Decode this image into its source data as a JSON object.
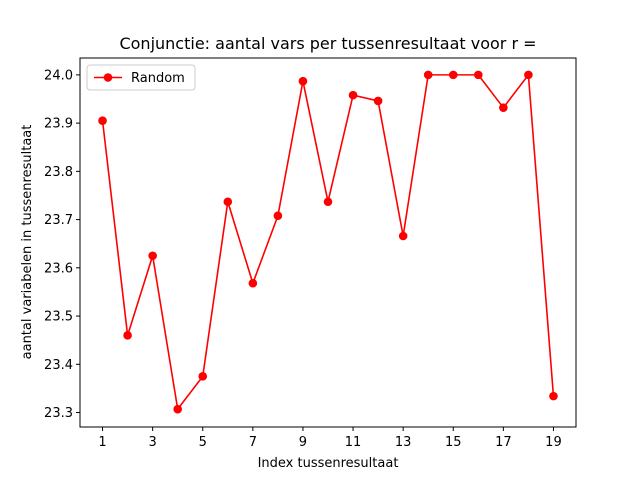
{
  "chart_data": {
    "type": "line",
    "title": "Conjunctie: aantal vars per tussenresultaat voor r =",
    "xlabel": "Index tussenresultaat",
    "ylabel": "aantal variabelen in tussenresultaat",
    "xlim": [
      0.1,
      19.9
    ],
    "ylim": [
      23.27,
      24.035
    ],
    "xticks": [
      1,
      3,
      5,
      7,
      9,
      11,
      13,
      15,
      17,
      19
    ],
    "xtick_labels": [
      "1",
      "3",
      "5",
      "7",
      "9",
      "11",
      "13",
      "15",
      "17",
      "19"
    ],
    "yticks": [
      23.3,
      23.4,
      23.5,
      23.6,
      23.7,
      23.8,
      23.9,
      24.0
    ],
    "ytick_labels": [
      "23.3",
      "23.4",
      "23.5",
      "23.6",
      "23.7",
      "23.8",
      "23.9",
      "24.0"
    ],
    "grid": false,
    "legend_position": "top-left",
    "series": [
      {
        "name": "Random",
        "color": "#ff0000",
        "marker": "circle",
        "x": [
          1,
          2,
          3,
          4,
          5,
          6,
          7,
          8,
          9,
          10,
          11,
          12,
          13,
          14,
          15,
          16,
          17,
          18,
          19
        ],
        "values": [
          23.905,
          23.46,
          23.625,
          23.307,
          23.375,
          23.737,
          23.568,
          23.708,
          23.987,
          23.737,
          23.958,
          23.946,
          23.666,
          24.0,
          24.0,
          24.0,
          23.932,
          24.0,
          23.334
        ]
      }
    ]
  }
}
